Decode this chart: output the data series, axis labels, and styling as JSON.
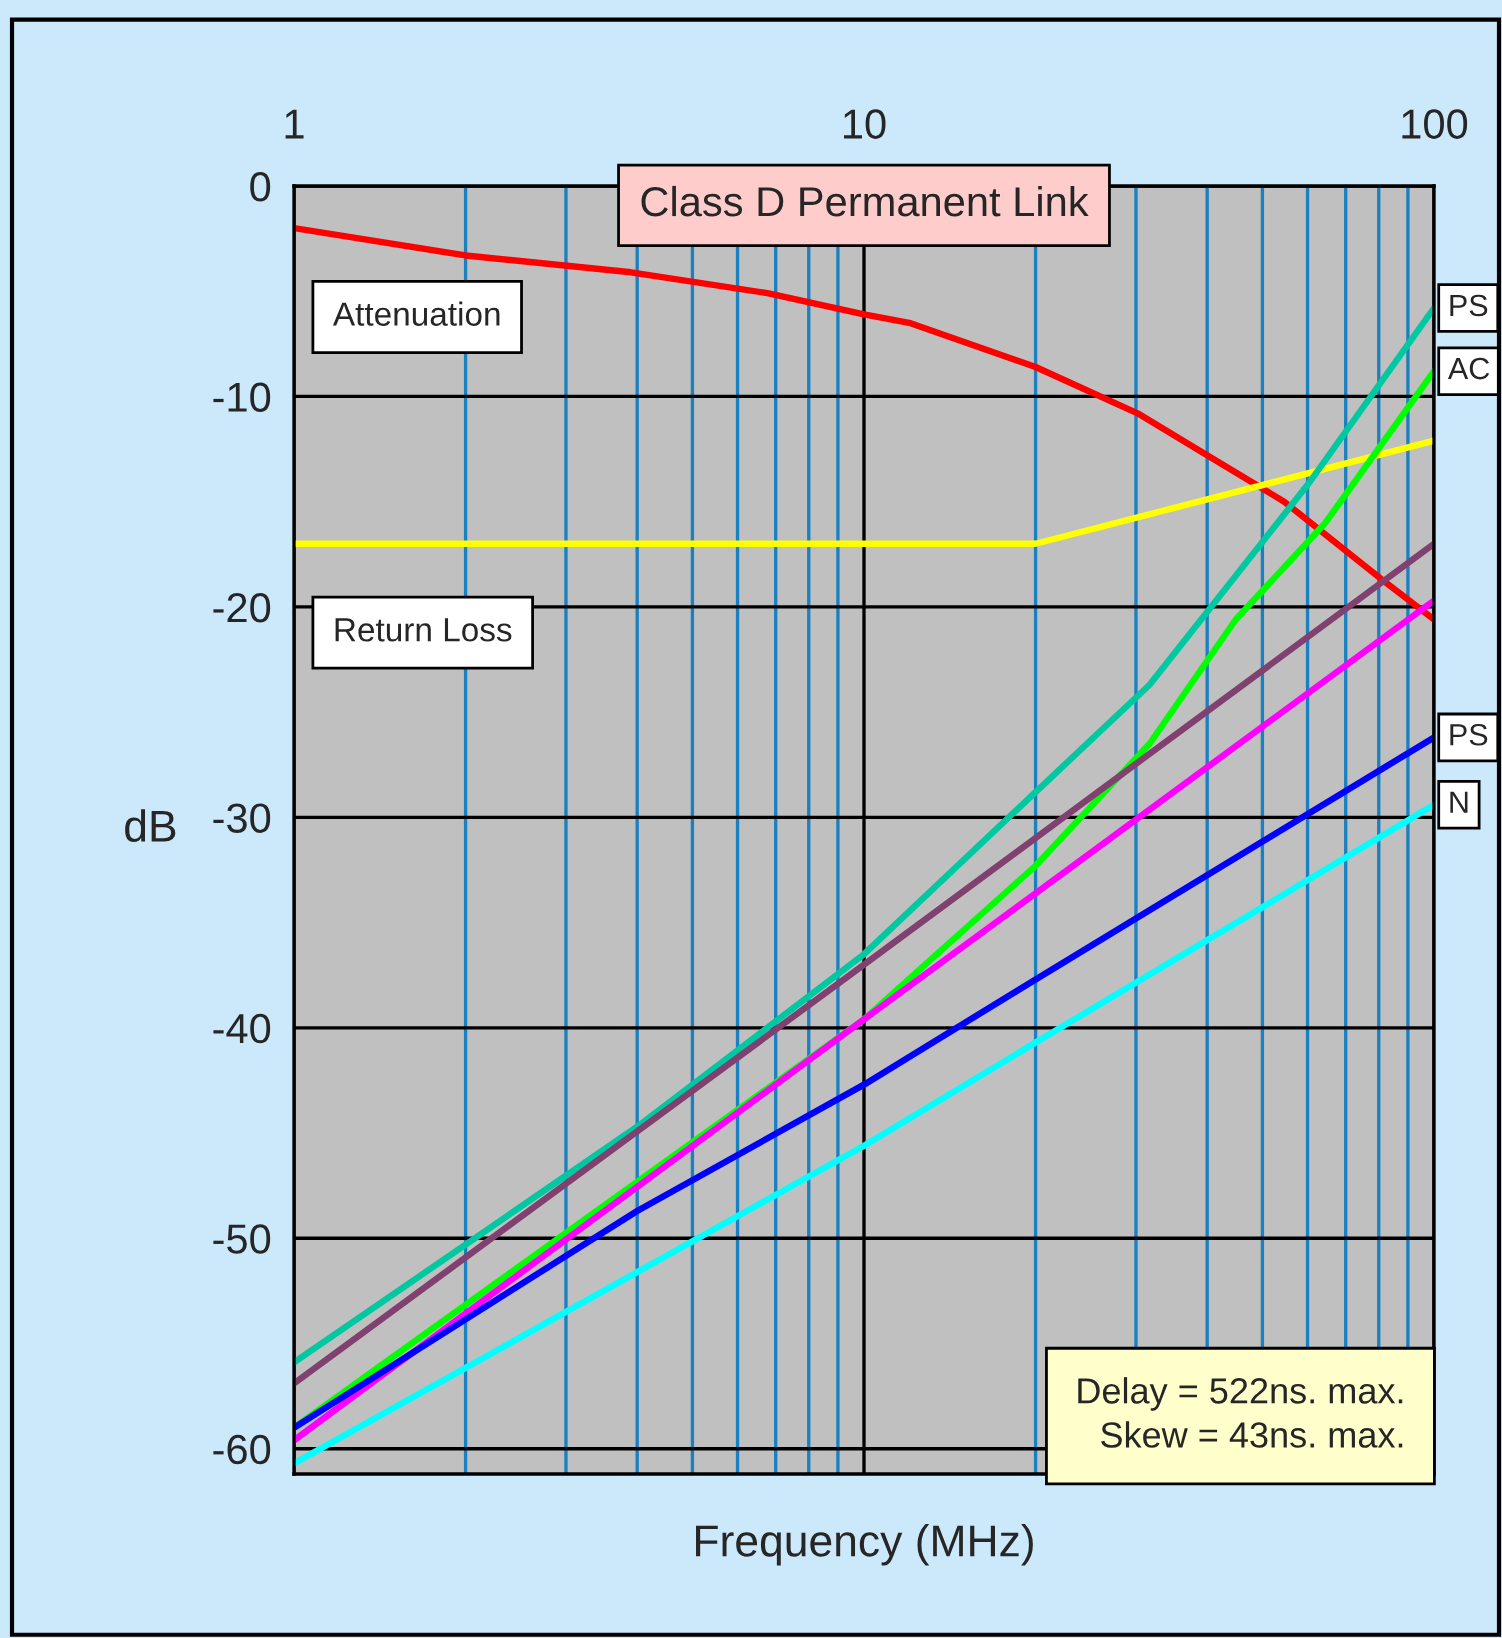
{
  "chart_data": {
    "type": "line",
    "title": "Class D Permanent Link",
    "xlabel": "Frequency (MHz)",
    "ylabel": "dB",
    "log": "x",
    "xlim": [
      1,
      100
    ],
    "xticks": [
      1,
      {
        "value": 2,
        "label": null
      },
      {
        "value": 3,
        "label": null
      },
      {
        "value": 4,
        "label": null
      },
      {
        "value": 5,
        "label": null
      },
      {
        "value": 6,
        "label": null
      },
      {
        "value": 7,
        "label": null
      },
      {
        "value": 8,
        "label": null
      },
      {
        "value": 9,
        "label": null
      },
      10,
      {
        "value": 20,
        "label": null
      },
      {
        "value": 30,
        "label": null
      },
      {
        "value": 40,
        "label": null
      },
      {
        "value": 50,
        "label": null
      },
      {
        "value": 60,
        "label": null
      },
      {
        "value": 70,
        "label": null
      },
      {
        "value": 80,
        "label": null
      },
      {
        "value": 90,
        "label": null
      },
      100
    ],
    "ylim": [
      -61.2,
      0
    ],
    "yticks": [
      0,
      -10,
      -20,
      -30,
      -40,
      -50,
      -60
    ],
    "grid": true,
    "legend": false,
    "marker": "none",
    "line_style": "solid",
    "annotations": [
      "Delay = 522ns. max.",
      "Skew = 43ns. max."
    ],
    "series": [
      {
        "name": "Attenuation",
        "color": "#ff0000",
        "x": [
          1,
          2,
          3.9,
          6.8,
          10,
          12,
          20,
          30.2,
          40.6,
          54.6,
          81,
          100
        ],
        "values": [
          -2.0,
          -3.3,
          -4.1,
          -5.1,
          -6.1,
          -6.5,
          -8.6,
          -10.8,
          -12.9,
          -15.0,
          -18.7,
          -20.6
        ]
      },
      {
        "name": "Return Loss",
        "color": "#ffff00",
        "x": [
          1,
          20,
          100
        ],
        "values": [
          -17.0,
          -17.0,
          -12.1
        ]
      },
      {
        "name": "PS",
        "color": "#00c8a0",
        "x": [
          1,
          2,
          4,
          10,
          20,
          31.7,
          60.4,
          100
        ],
        "values": [
          -55.9,
          -50.3,
          -44.7,
          -36.5,
          -28.8,
          -23.7,
          -14.1,
          -5.8
        ]
      },
      {
        "name": "AC",
        "color": "#00ff00",
        "x": [
          1,
          10,
          20,
          31.7,
          44.9,
          64.5,
          100
        ],
        "values": [
          -59.0,
          -39.6,
          -32.3,
          -26.5,
          -20.6,
          -16.0,
          -8.8
        ]
      },
      {
        "color": "#804070",
        "x": [
          1,
          10,
          100
        ],
        "values": [
          -56.9,
          -37.0,
          -17.0
        ]
      },
      {
        "color": "#ff00ff",
        "x": [
          1,
          10,
          100
        ],
        "values": [
          -59.6,
          -39.6,
          -19.7
        ]
      },
      {
        "name": "PS",
        "color": "#0000ff",
        "x": [
          1,
          4,
          10,
          20,
          100
        ],
        "values": [
          -59.0,
          -48.7,
          -42.7,
          -37.7,
          -26.2
        ]
      },
      {
        "name": "N",
        "color": "#00ffff",
        "x": [
          1,
          10,
          20,
          100
        ],
        "values": [
          -60.7,
          -45.6,
          -40.7,
          -29.4
        ]
      }
    ]
  }
}
